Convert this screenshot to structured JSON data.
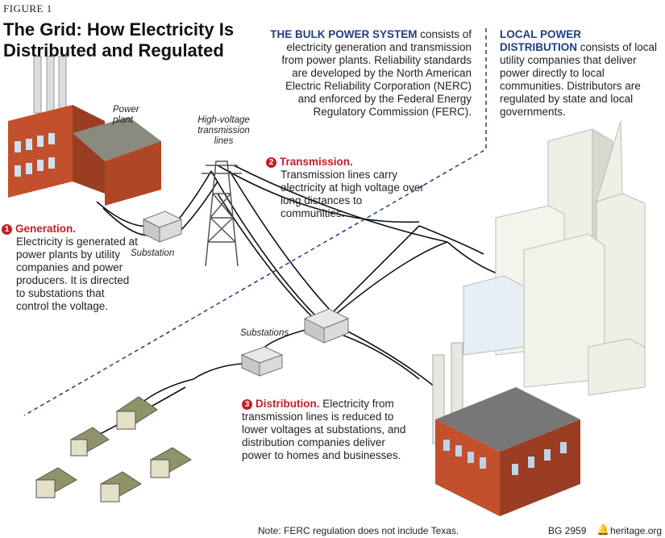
{
  "figure_label": "FIGURE 1",
  "title": "The Grid: How Electricity Is Distributed and Regulated",
  "bulk": {
    "heading": "THE BULK POWER SYSTEM",
    "text": " consists of electricity generation and transmission from power plants. Reliability standards are developed by the North American Electric Reliability Corporation (NERC) and enforced by the Federal Energy Regulatory Commission (FERC)."
  },
  "local": {
    "heading": "LOCAL POWER DISTRIBUTION",
    "text": " consists of local utility companies that deliver power directly to local communities. Distributors are regulated by state and local governments."
  },
  "steps": [
    {
      "num": "1",
      "heading": "Generation.",
      "text": "Electricity is generated at power plants by utility companies and power producers. It is directed to substations that control the voltage."
    },
    {
      "num": "2",
      "heading": "Transmission.",
      "text": "Transmission lines carry electricity at high voltage over long distances to communities."
    },
    {
      "num": "3",
      "heading": "Distribution.",
      "text": " Electricity from transmission lines is reduced to lower voltages at substations, and distribution companies deliver power to homes and businesses."
    }
  ],
  "labels": {
    "power_plant": "Power plant",
    "hv_lines": "High-voltage transmission lines",
    "substation": "Substation",
    "substations": "Substations"
  },
  "footer": {
    "note": "Note: FERC regulation does not include Texas.",
    "code": "BG 2959",
    "site": "heritage.org"
  },
  "colors": {
    "accent_blue": "#1f3f7f",
    "accent_red": "#c21f26",
    "brick": "#c2502c"
  }
}
